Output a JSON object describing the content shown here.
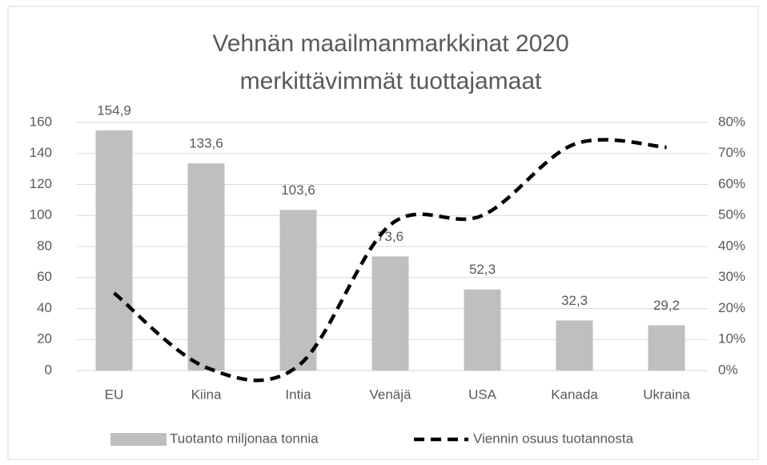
{
  "chart_data": {
    "type": "bar_line",
    "title": [
      "Vehnän maailmanmarkkinat 2020",
      "merkittävimmät tuottajamaat"
    ],
    "categories": [
      "EU",
      "Kiina",
      "Intia",
      "Venäjä",
      "USA",
      "Kanada",
      "Ukraina"
    ],
    "series": [
      {
        "name": "Tuotanto miljonaa tonnia",
        "type": "bar",
        "color": "#bfbfbf",
        "values": [
          154.9,
          133.6,
          103.6,
          73.6,
          52.3,
          32.3,
          29.2
        ],
        "value_labels": [
          "154,9",
          "133,6",
          "103,6",
          "73,6",
          "52,3",
          "32,3",
          "29,2"
        ]
      },
      {
        "name": "Viennin osuus tuotannosta",
        "type": "line",
        "axis": "y2",
        "color": "#000000",
        "dashed": true,
        "values": [
          25,
          1,
          1.5,
          47,
          50,
          73,
          72
        ]
      }
    ],
    "ylim": [
      0,
      160
    ],
    "yticks": [
      0,
      20,
      40,
      60,
      80,
      100,
      120,
      140,
      160
    ],
    "y2lim": [
      0,
      80
    ],
    "y2ticks": [
      {
        "value": 0,
        "label": "0%"
      },
      {
        "value": 10,
        "label": "10%"
      },
      {
        "value": 20,
        "label": "20%"
      },
      {
        "value": 30,
        "label": "30%"
      },
      {
        "value": 40,
        "label": "40%"
      },
      {
        "value": 50,
        "label": "50%"
      },
      {
        "value": 60,
        "label": "60%"
      },
      {
        "value": 70,
        "label": "70%"
      },
      {
        "value": 80,
        "label": "80%"
      }
    ],
    "grid": true,
    "legend": "bottom"
  }
}
